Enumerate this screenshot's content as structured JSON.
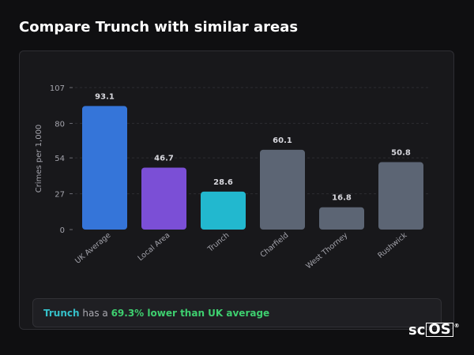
{
  "page": {
    "title": "Compare Trunch with similar areas"
  },
  "chart_data": {
    "type": "bar",
    "ylabel": "Crimes per 1,000",
    "xlabel": "",
    "ylim": [
      0,
      107
    ],
    "yticks": [
      0,
      27,
      54,
      80,
      107
    ],
    "categories": [
      "UK Average",
      "Local Area",
      "Trunch",
      "Charfield",
      "West Thorney",
      "Rushwick"
    ],
    "values": [
      93.1,
      46.7,
      28.6,
      60.1,
      16.8,
      50.8
    ],
    "value_labels": [
      "93.1",
      "46.7",
      "28.6",
      "60.1",
      "16.8",
      "50.8"
    ],
    "colors": [
      "#3575d9",
      "#7b4fd6",
      "#22b8cf",
      "#5c6574",
      "#5c6574",
      "#5c6574"
    ],
    "grid": "dashed horizontal",
    "legend": "none"
  },
  "callout": {
    "area_name": "Trunch",
    "middle_text": "has a",
    "percent_text": "69.3% lower than UK average"
  },
  "logo": {
    "prefix": "sc",
    "boxed": "OS",
    "mark": "®"
  }
}
